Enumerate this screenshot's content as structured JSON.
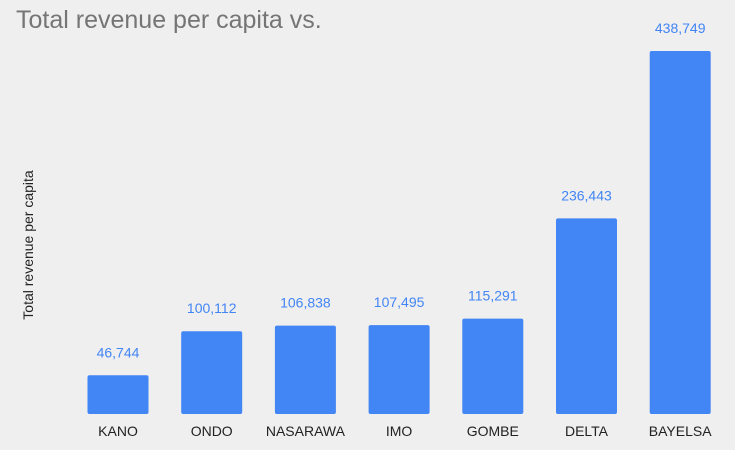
{
  "chart_data": {
    "type": "bar",
    "title": "Total revenue per capita vs.",
    "xlabel": "",
    "ylabel": "Total revenue per capita",
    "categories": [
      "KANO",
      "ONDO",
      "NASARAWA",
      "IMO",
      "GOMBE",
      "DELTA",
      "BAYELSA"
    ],
    "values": [
      46744,
      100112,
      106838,
      107495,
      115291,
      236443,
      438749
    ],
    "value_labels": [
      "46,744",
      "100,112",
      "106,838",
      "107,495",
      "115,291",
      "236,443",
      "438,749"
    ],
    "ylim": [
      0,
      438749
    ],
    "grid": false,
    "legend": "none"
  },
  "colors": {
    "bar": "#4285f4",
    "value_label": "#4285f4",
    "title": "#757575",
    "axis_text": "#222222",
    "background": "#efefef"
  }
}
